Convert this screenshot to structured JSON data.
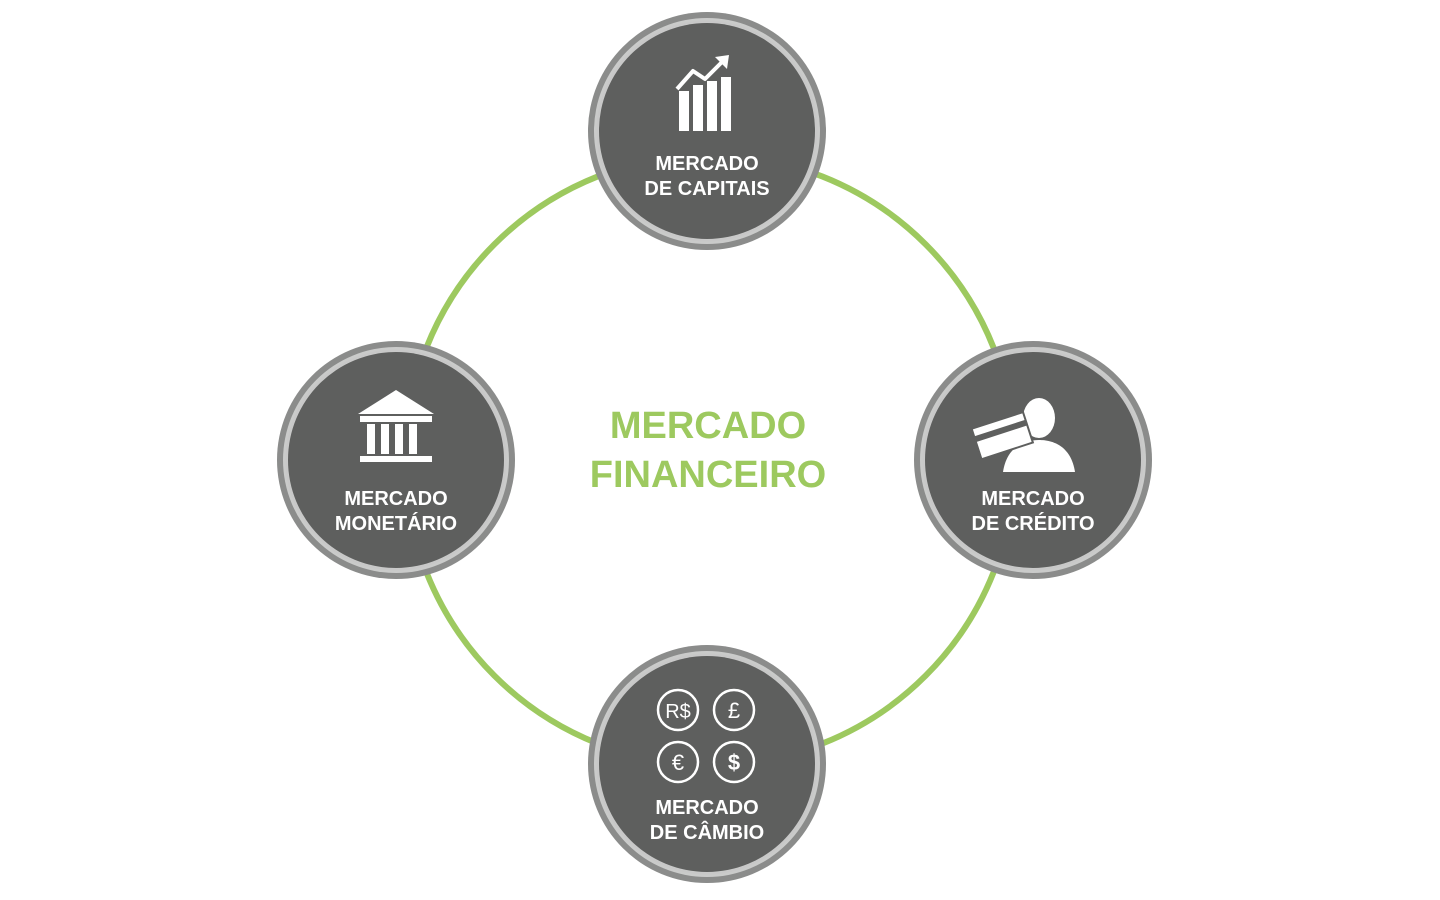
{
  "colors": {
    "ring": "#9dc95f",
    "center_text": "#9dc95f",
    "node_fill": "#5e5f5e",
    "node_border": "#8b8c8b",
    "node_inner_ring": "#c8c8c8"
  },
  "center": {
    "line1": "MERCADO",
    "line2": "FINANCEIRO"
  },
  "nodes": {
    "capitais": {
      "line1": "MERCADO",
      "line2": "DE CAPITAIS",
      "icon": "bar-chart-growth-icon"
    },
    "credito": {
      "line1": "MERCADO",
      "line2": "DE CRÉDITO",
      "icon": "credit-card-person-icon"
    },
    "cambio": {
      "line1": "MERCADO",
      "line2": "DE CÂMBIO",
      "icon": "currency-coins-icon",
      "currencies": [
        "R$",
        "£",
        "€",
        "$"
      ]
    },
    "monetario": {
      "line1": "MERCADO",
      "line2": "MONETÁRIO",
      "icon": "bank-building-icon"
    }
  }
}
